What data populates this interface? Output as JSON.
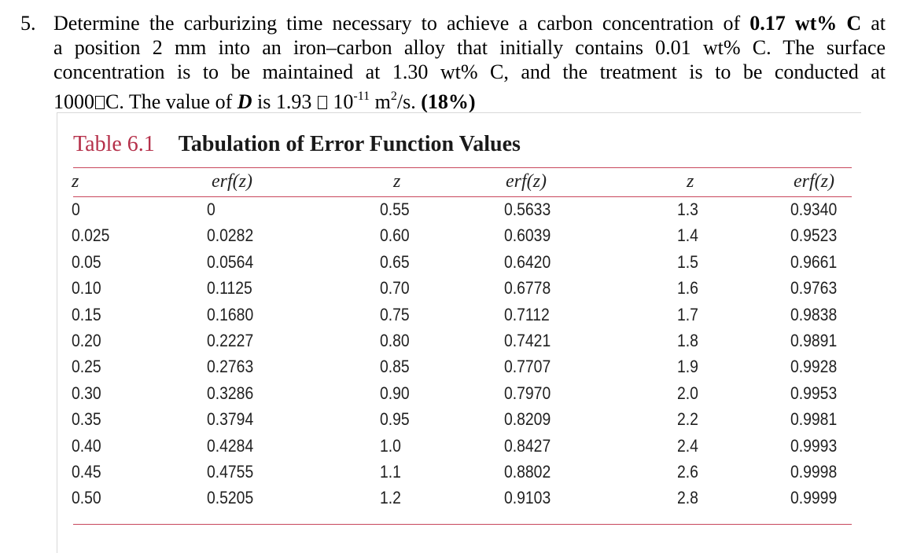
{
  "problem": {
    "number": "5.",
    "line1_a": "Determine the carburizing time necessary to achieve a carbon concentration of ",
    "line1_bold": "0.17 wt% C",
    "line1_b": " at",
    "line2": "a position 2 mm into an iron–carbon alloy that initially contains 0.01 wt% C. The surface",
    "line3": "concentration is to be maintained at 1.30 wt% C, and the treatment is to be conducted at",
    "line4_a": "1000",
    "line4_b": "C. The value of ",
    "line4_D": "D",
    "line4_c": " is 1.93 ",
    "line4_d": " 10",
    "line4_exp": "-11",
    "line4_e": " m",
    "line4_sq": "2",
    "line4_f": "/s. ",
    "line4_pct": "(18%)"
  },
  "table": {
    "label": "Table 6.1",
    "title": "Tabulation of Error Function Values",
    "headers": [
      "z",
      "erf(z)",
      "z",
      "erf(z)",
      "z",
      "erf(z)"
    ],
    "rows": [
      [
        "0",
        "0",
        "0.55",
        "0.5633",
        "1.3",
        "0.9340"
      ],
      [
        "0.025",
        "0.0282",
        "0.60",
        "0.6039",
        "1.4",
        "0.9523"
      ],
      [
        "0.05",
        "0.0564",
        "0.65",
        "0.6420",
        "1.5",
        "0.9661"
      ],
      [
        "0.10",
        "0.1125",
        "0.70",
        "0.6778",
        "1.6",
        "0.9763"
      ],
      [
        "0.15",
        "0.1680",
        "0.75",
        "0.7112",
        "1.7",
        "0.9838"
      ],
      [
        "0.20",
        "0.2227",
        "0.80",
        "0.7421",
        "1.8",
        "0.9891"
      ],
      [
        "0.25",
        "0.2763",
        "0.85",
        "0.7707",
        "1.9",
        "0.9928"
      ],
      [
        "0.30",
        "0.3286",
        "0.90",
        "0.7970",
        "2.0",
        "0.9953"
      ],
      [
        "0.35",
        "0.3794",
        "0.95",
        "0.8209",
        "2.2",
        "0.9981"
      ],
      [
        "0.40",
        "0.4284",
        "1.0",
        "0.8427",
        "2.4",
        "0.9993"
      ],
      [
        "0.45",
        "0.4755",
        "1.1",
        "0.8802",
        "2.6",
        "0.9998"
      ],
      [
        "0.50",
        "0.5205",
        "1.2",
        "0.9103",
        "2.8",
        "0.9999"
      ]
    ]
  }
}
